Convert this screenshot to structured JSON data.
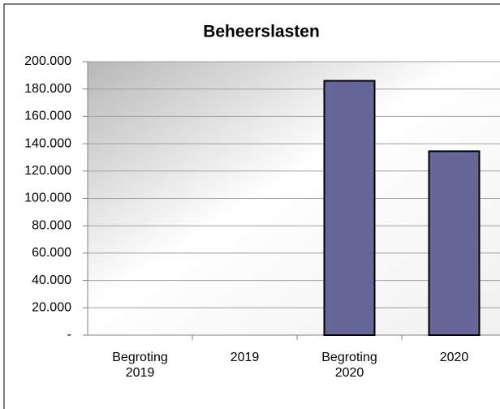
{
  "chart_data": {
    "type": "bar",
    "title": "Beheerslasten",
    "categories": [
      "Begroting 2019",
      "2019",
      "Begroting 2020",
      "2020"
    ],
    "values": [
      0,
      0,
      186000,
      134500
    ],
    "color": "#666699",
    "ylim": [
      0,
      200000
    ],
    "yticks": [
      {
        "value": 0,
        "label": "-"
      },
      {
        "value": 20000,
        "label": "20.000"
      },
      {
        "value": 40000,
        "label": "40.000"
      },
      {
        "value": 60000,
        "label": "60.000"
      },
      {
        "value": 80000,
        "label": "80.000"
      },
      {
        "value": 100000,
        "label": "100.000"
      },
      {
        "value": 120000,
        "label": "120.000"
      },
      {
        "value": 140000,
        "label": "140.000"
      },
      {
        "value": 160000,
        "label": "160.000"
      },
      {
        "value": 180000,
        "label": "180.000"
      },
      {
        "value": 200000,
        "label": "200.000"
      }
    ],
    "grid": true
  }
}
